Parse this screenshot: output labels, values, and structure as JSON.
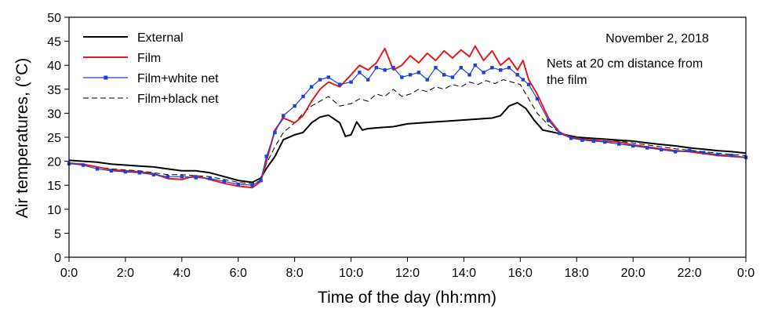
{
  "chart_data": {
    "type": "line",
    "xlabel": "Time of the day (hh:mm)",
    "ylabel": "Air temperatures, (°C)",
    "xlim": [
      0,
      24
    ],
    "ylim": [
      0,
      50
    ],
    "x_ticks": [
      0,
      2,
      4,
      6,
      8,
      10,
      12,
      14,
      16,
      18,
      20,
      22,
      24
    ],
    "x_tick_labels": [
      "0:0",
      "2:0",
      "4:0",
      "6:0",
      "8:0",
      "10:0",
      "12:0",
      "14:0",
      "16:0",
      "18:0",
      "20:0",
      "22:0",
      "0:0"
    ],
    "y_ticks": [
      0,
      5,
      10,
      15,
      20,
      25,
      30,
      35,
      40,
      45,
      50
    ],
    "y_tick_labels": [
      "0",
      "5",
      "10",
      "15",
      "20",
      "25",
      "30",
      "35",
      "40",
      "45",
      "50"
    ],
    "annotations": [
      "November 2, 2018",
      "Nets at 20 cm distance from",
      "the film"
    ],
    "grid": false,
    "legend_position": "top-left",
    "series": [
      {
        "name": "External",
        "color": "#000000",
        "style": "solid",
        "x": [
          0,
          0.5,
          1,
          1.5,
          2,
          2.5,
          3,
          3.5,
          4,
          4.5,
          5,
          5.5,
          6,
          6.5,
          6.8,
          7,
          7.3,
          7.6,
          8,
          8.3,
          8.6,
          8.9,
          9.2,
          9.6,
          9.8,
          10,
          10.2,
          10.4,
          10.6,
          11,
          11.5,
          12,
          12.5,
          13,
          13.5,
          14,
          14.5,
          15,
          15.3,
          15.6,
          15.9,
          16.2,
          16.5,
          16.8,
          17.2,
          17.6,
          18,
          18.5,
          19,
          19.5,
          20,
          20.5,
          21,
          21.5,
          22,
          22.5,
          23,
          23.5,
          24
        ],
        "y": [
          20.2,
          20,
          19.8,
          19.4,
          19.2,
          19,
          18.8,
          18.4,
          18,
          18,
          17.6,
          16.8,
          16,
          15.6,
          16.5,
          18.5,
          21,
          24.5,
          25.5,
          26,
          28,
          29.2,
          29.6,
          28,
          25.2,
          25.5,
          28.2,
          26.5,
          26.8,
          27,
          27.2,
          27.8,
          28,
          28.2,
          28.4,
          28.6,
          28.8,
          29,
          29.5,
          31.5,
          32.2,
          31,
          28.5,
          26.5,
          26,
          25.5,
          25,
          24.8,
          24.6,
          24.4,
          24.2,
          23.8,
          23.5,
          23.2,
          22.8,
          22.5,
          22.2,
          22,
          21.7
        ]
      },
      {
        "name": "Film",
        "color": "#e41a1c",
        "style": "solid",
        "x": [
          0,
          0.5,
          1,
          1.5,
          2,
          2.5,
          3,
          3.5,
          4,
          4.5,
          5,
          5.5,
          6,
          6.5,
          6.8,
          7,
          7.3,
          7.6,
          8,
          8.3,
          8.6,
          8.9,
          9.2,
          9.6,
          10,
          10.3,
          10.6,
          10.9,
          11.2,
          11.5,
          11.8,
          12.1,
          12.4,
          12.7,
          13,
          13.3,
          13.6,
          13.9,
          14.2,
          14.4,
          14.7,
          15,
          15.3,
          15.6,
          15.9,
          16.1,
          16.3,
          16.6,
          17,
          17.4,
          17.8,
          18.2,
          18.6,
          19,
          19.5,
          20,
          20.5,
          21,
          21.5,
          22,
          22.5,
          23,
          23.5,
          24
        ],
        "y": [
          19.6,
          19.4,
          18.8,
          18.2,
          18,
          17.8,
          17.4,
          16.4,
          16.2,
          17,
          16.2,
          15.4,
          14.8,
          14.5,
          15.8,
          20,
          26.5,
          29,
          28,
          29.5,
          32.5,
          35,
          36.5,
          35.5,
          38,
          40,
          39,
          40.5,
          43.5,
          39,
          40,
          42,
          40.5,
          42.5,
          41,
          43,
          41.5,
          43.2,
          41.8,
          44,
          41,
          43,
          40,
          41.5,
          39,
          41,
          37,
          34,
          29,
          26,
          25,
          24.6,
          24.4,
          24.2,
          24,
          23.4,
          23,
          22.6,
          22.2,
          22,
          21.6,
          21.2,
          21,
          20.8
        ]
      },
      {
        "name": "Film+white net",
        "color": "#1f3fd6",
        "style": "solid-markers",
        "x": [
          0,
          0.5,
          1,
          1.5,
          2,
          2.5,
          3,
          3.5,
          4,
          4.5,
          5,
          5.5,
          6,
          6.5,
          6.8,
          7,
          7.3,
          7.6,
          8,
          8.3,
          8.6,
          8.9,
          9.2,
          9.6,
          10,
          10.3,
          10.6,
          10.9,
          11.2,
          11.5,
          11.8,
          12.1,
          12.4,
          12.7,
          13,
          13.3,
          13.6,
          13.9,
          14.2,
          14.4,
          14.7,
          15,
          15.3,
          15.6,
          15.9,
          16.1,
          16.3,
          16.6,
          17,
          17.4,
          17.8,
          18.2,
          18.6,
          19,
          19.5,
          20,
          20.5,
          21,
          21.5,
          22,
          22.5,
          23,
          23.5,
          24
        ],
        "y": [
          19.5,
          19.2,
          18.4,
          18,
          17.8,
          17.6,
          17.2,
          16.8,
          16.8,
          16.6,
          16.4,
          15.8,
          15.2,
          15,
          16,
          21,
          26,
          29.5,
          31.5,
          33.5,
          35.5,
          37,
          37.5,
          36,
          36.5,
          38.5,
          37,
          39.5,
          39,
          39.5,
          37.5,
          38,
          38.5,
          37,
          39.5,
          38,
          37.5,
          39.5,
          38,
          40,
          38.5,
          39.5,
          39,
          39.5,
          38,
          37,
          36,
          33,
          28.5,
          25.8,
          24.8,
          24.4,
          24.2,
          24,
          23.6,
          23.2,
          22.8,
          22.4,
          22,
          22.2,
          21.8,
          21.4,
          21.2,
          20.8
        ]
      },
      {
        "name": "Film+black net",
        "color": "#000000",
        "style": "dashed",
        "x": [
          0,
          0.5,
          1,
          1.5,
          2,
          2.5,
          3,
          3.5,
          4,
          4.5,
          5,
          5.5,
          6,
          6.5,
          6.8,
          7,
          7.3,
          7.6,
          8,
          8.3,
          8.6,
          8.9,
          9.2,
          9.6,
          10,
          10.3,
          10.6,
          10.9,
          11.2,
          11.5,
          11.8,
          12.1,
          12.4,
          12.7,
          13,
          13.3,
          13.6,
          13.9,
          14.2,
          14.5,
          14.8,
          15.1,
          15.4,
          15.7,
          16,
          16.3,
          16.6,
          17,
          17.4,
          17.8,
          18.2,
          18.6,
          19,
          19.5,
          20,
          20.5,
          21,
          21.5,
          22,
          22.5,
          23,
          23.5,
          24
        ],
        "y": [
          19.6,
          19.4,
          18.8,
          18.4,
          18.2,
          18,
          17.6,
          17.2,
          17.2,
          17,
          16.8,
          16.2,
          15.6,
          15.3,
          16,
          19.5,
          23,
          26,
          28,
          30,
          31.5,
          32.5,
          33.5,
          31.5,
          32,
          33,
          32.5,
          34,
          33.5,
          35,
          33.5,
          34,
          35,
          34.5,
          35.5,
          35,
          36,
          35.5,
          36.5,
          36,
          36.8,
          36.2,
          37,
          36.5,
          36,
          33,
          30,
          27.5,
          26,
          25.2,
          25,
          24.8,
          24.6,
          24.2,
          23.8,
          23.4,
          23,
          22.6,
          22.3,
          22,
          21.7,
          21.4,
          21.2
        ]
      }
    ]
  }
}
